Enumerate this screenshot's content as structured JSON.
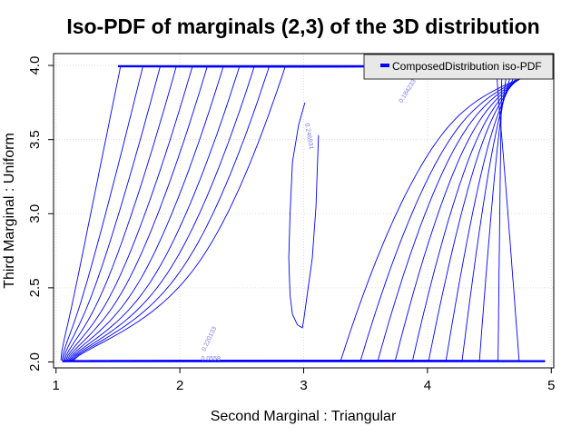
{
  "chart_data": {
    "type": "line",
    "title": "Iso-PDF of marginals (2,3) of the 3D distribution",
    "xlabel": "Second Marginal : Triangular",
    "ylabel": "Third Marginal : Uniform",
    "xlim": [
      0.98,
      5.02
    ],
    "ylim": [
      1.96,
      4.08
    ],
    "xticks": [
      1,
      2,
      3,
      4,
      5
    ],
    "yticks": [
      2.0,
      2.5,
      3.0,
      3.5,
      4.0
    ],
    "xtick_labels": [
      "1",
      "2",
      "3",
      "4",
      "5"
    ],
    "ytick_labels": [
      "2.0",
      "2.5",
      "3.0",
      "3.5",
      "4.0"
    ],
    "grid": true,
    "legend_position": "top-right",
    "series": [
      {
        "name": "ComposedDistribution iso-PDF",
        "color": "#0000ff"
      }
    ],
    "contour_labels": [
      "0.246931",
      "0.184233",
      "0.220133",
      "0.0558"
    ],
    "left_family_x_at_top": [
      1.52,
      1.7,
      1.84,
      1.97,
      2.1,
      2.22,
      2.35,
      2.48,
      2.6,
      2.72,
      2.85
    ],
    "right_family_x_at_bottom": [
      3.3,
      3.46,
      3.6,
      3.74,
      3.88,
      4.01,
      4.15,
      4.28,
      4.42,
      4.57,
      4.74
    ],
    "center_closed_curve": {
      "x_range": [
        2.88,
        3.12
      ],
      "y_range": [
        2.23,
        3.75
      ]
    }
  }
}
